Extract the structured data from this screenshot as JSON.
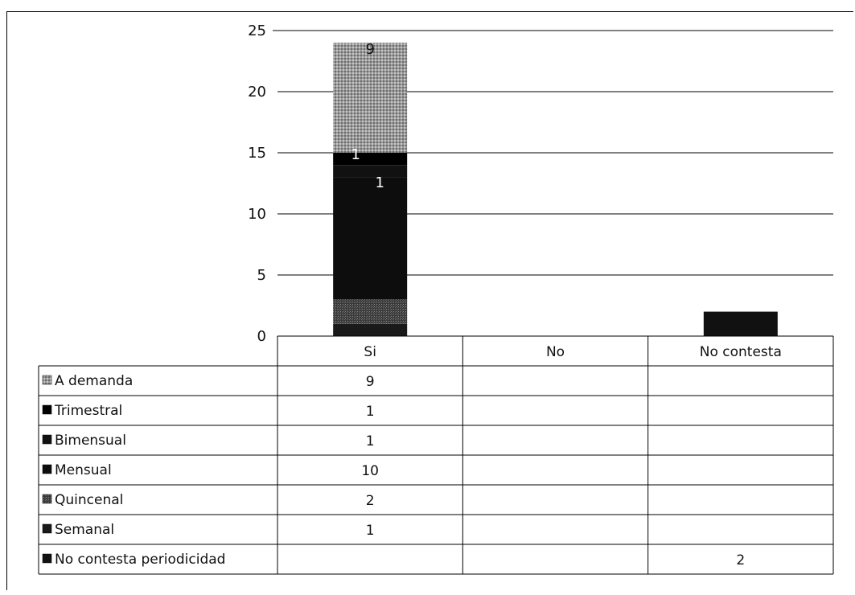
{
  "chart_data": {
    "type": "bar",
    "stacked": true,
    "categories": [
      "Si",
      "No",
      "No contesta"
    ],
    "ylim": [
      0,
      25
    ],
    "yticks": [
      0,
      5,
      10,
      15,
      20,
      25
    ],
    "grid": true,
    "legend": "data-table",
    "series": [
      {
        "name": "Semanal",
        "values": [
          1,
          null,
          null
        ],
        "color": "#1a1a1a"
      },
      {
        "name": "Quincenal",
        "values": [
          2,
          null,
          null
        ],
        "color": "#5a5a5a"
      },
      {
        "name": "Mensual",
        "values": [
          10,
          null,
          null
        ],
        "color": "#0d0d0d"
      },
      {
        "name": "Bimensual",
        "values": [
          1,
          null,
          null
        ],
        "color": "#111111"
      },
      {
        "name": "Trimestral",
        "values": [
          1,
          null,
          null
        ],
        "color": "#000000"
      },
      {
        "name": "A demanda",
        "values": [
          9,
          null,
          null
        ],
        "color": "#9a9a9a"
      },
      {
        "name": "No contesta periodicidad",
        "values": [
          null,
          null,
          2
        ],
        "color": "#111111"
      }
    ],
    "data_labels": [
      {
        "series": "A demanda",
        "category": "Si",
        "text": "9"
      },
      {
        "series": "Trimestral",
        "category": "Si",
        "text": "1"
      },
      {
        "series": "Bimensual",
        "category": "Si",
        "text": "1"
      }
    ],
    "table_rows": [
      {
        "name": "A demanda",
        "cells": [
          "9",
          "",
          ""
        ]
      },
      {
        "name": "Trimestral",
        "cells": [
          "1",
          "",
          ""
        ]
      },
      {
        "name": "Bimensual",
        "cells": [
          "1",
          "",
          ""
        ]
      },
      {
        "name": "Mensual",
        "cells": [
          "10",
          "",
          ""
        ]
      },
      {
        "name": "Quincenal",
        "cells": [
          "2",
          "",
          ""
        ]
      },
      {
        "name": "Semanal",
        "cells": [
          "1",
          "",
          ""
        ]
      },
      {
        "name": "No contesta periodicidad",
        "cells": [
          "",
          "",
          "2"
        ]
      }
    ]
  }
}
